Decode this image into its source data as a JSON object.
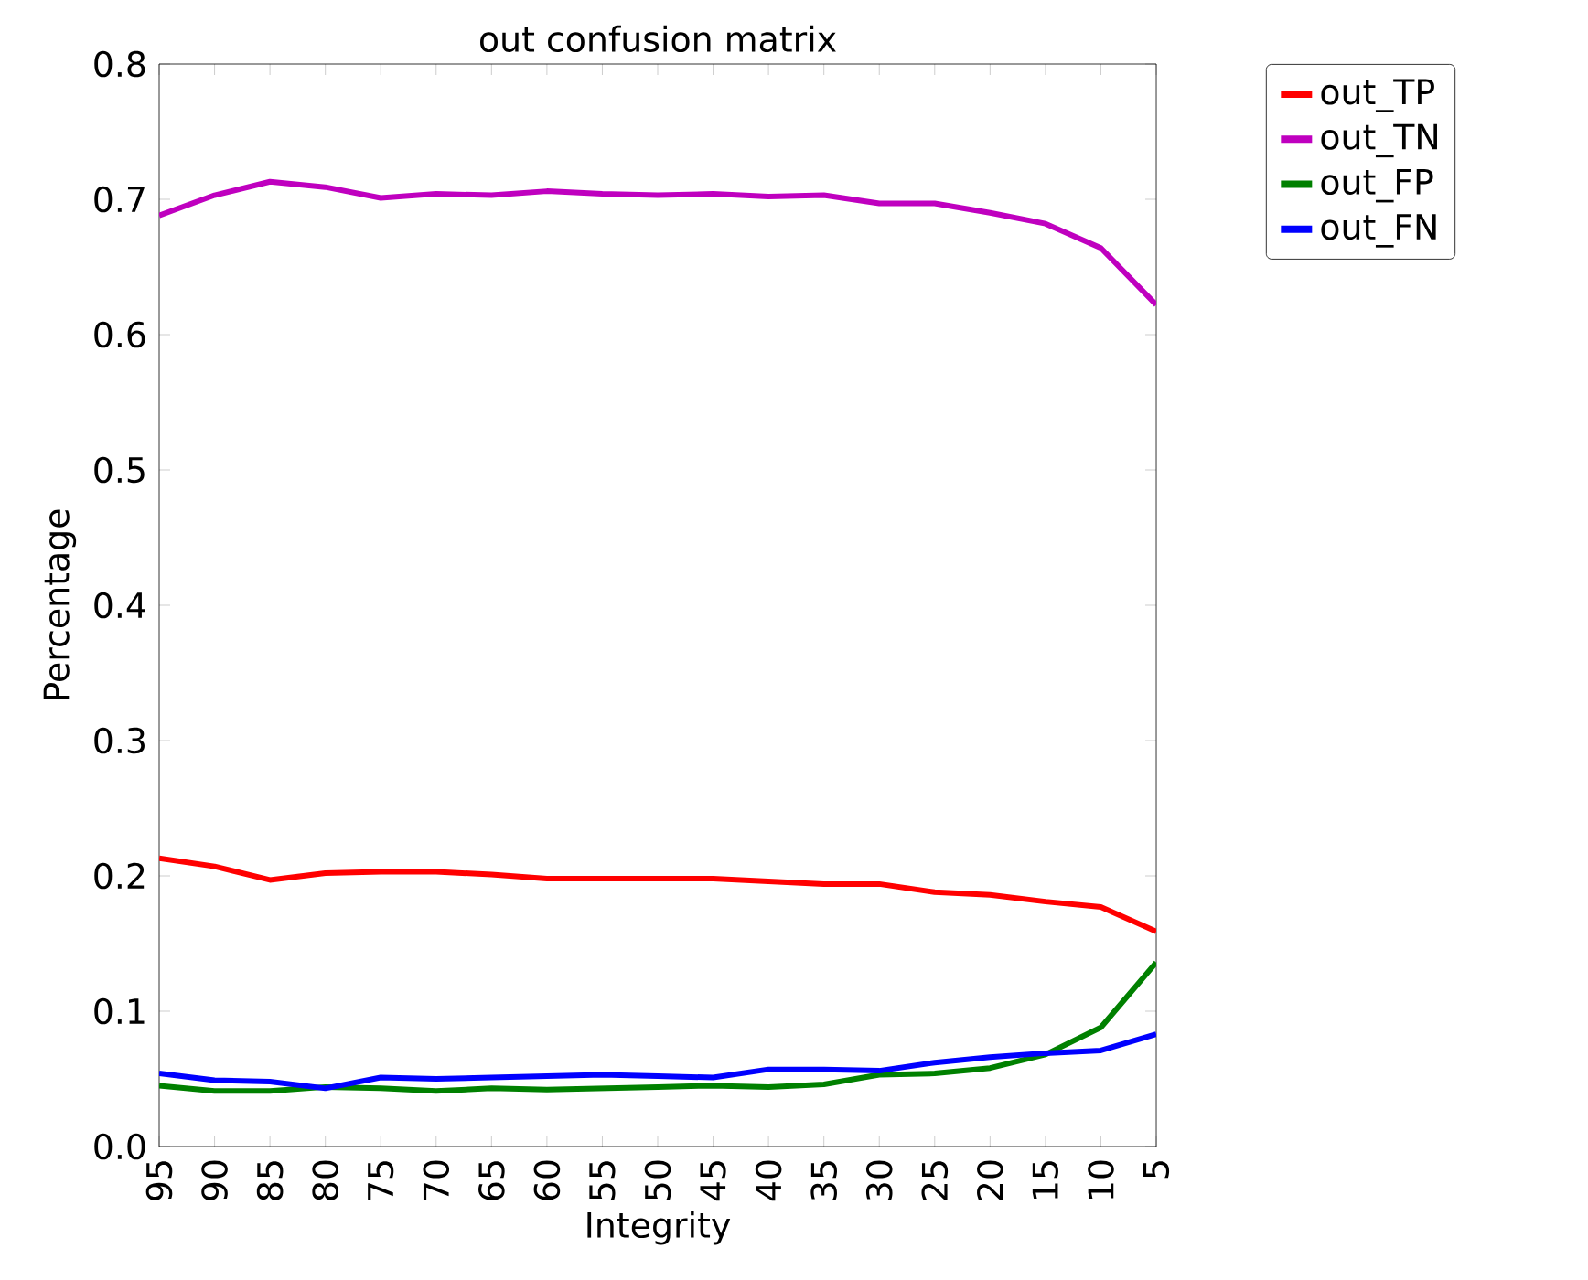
{
  "chart_data": {
    "type": "line",
    "title": "out confusion matrix",
    "xlabel": "Integrity",
    "ylabel": "Percentage",
    "categories": [
      "95",
      "90",
      "85",
      "80",
      "75",
      "70",
      "65",
      "60",
      "55",
      "50",
      "45",
      "40",
      "35",
      "30",
      "25",
      "20",
      "15",
      "10",
      "5"
    ],
    "series": [
      {
        "name": "out_TP",
        "color": "#ff0000",
        "values": [
          0.213,
          0.207,
          0.197,
          0.202,
          0.203,
          0.203,
          0.201,
          0.198,
          0.198,
          0.198,
          0.198,
          0.196,
          0.194,
          0.194,
          0.188,
          0.186,
          0.181,
          0.177,
          0.159
        ]
      },
      {
        "name": "out_TN",
        "color": "#bf00bf",
        "values": [
          0.688,
          0.703,
          0.713,
          0.709,
          0.701,
          0.704,
          0.703,
          0.706,
          0.704,
          0.703,
          0.704,
          0.702,
          0.703,
          0.697,
          0.697,
          0.69,
          0.682,
          0.664,
          0.622
        ]
      },
      {
        "name": "out_FP",
        "color": "#008000",
        "values": [
          0.045,
          0.041,
          0.041,
          0.044,
          0.043,
          0.041,
          0.043,
          0.042,
          0.043,
          0.044,
          0.045,
          0.044,
          0.046,
          0.053,
          0.054,
          0.058,
          0.068,
          0.088,
          0.136
        ]
      },
      {
        "name": "out_FN",
        "color": "#0000ff",
        "values": [
          0.054,
          0.049,
          0.048,
          0.043,
          0.051,
          0.05,
          0.051,
          0.052,
          0.053,
          0.052,
          0.051,
          0.057,
          0.057,
          0.056,
          0.062,
          0.066,
          0.069,
          0.071,
          0.083
        ]
      }
    ],
    "ylim": [
      0.0,
      0.8
    ],
    "yticks": [
      {
        "value": 0.0,
        "label": "0.0"
      },
      0.1,
      0.2,
      0.3,
      0.4,
      0.5,
      0.6,
      0.7,
      0.8
    ],
    "grid": false,
    "legend": "top right",
    "marker": "none",
    "line_style": "solid"
  }
}
